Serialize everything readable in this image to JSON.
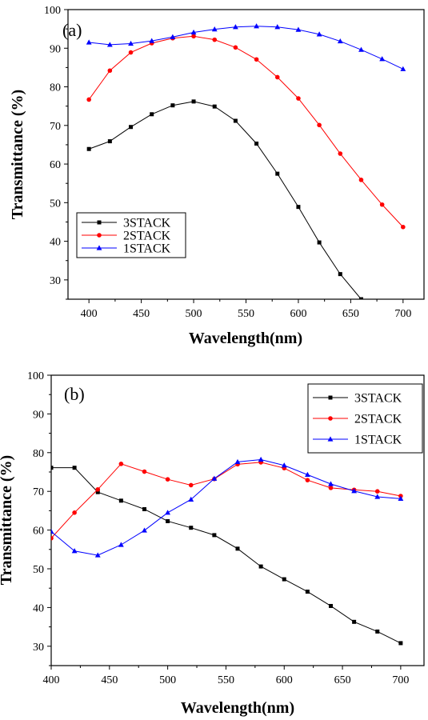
{
  "chart_data": [
    {
      "type": "line",
      "panel_label": "(a)",
      "xlabel": "Wavelength(nm)",
      "ylabel": "Transmittance (%)",
      "xlim": [
        380,
        720
      ],
      "ylim": [
        25,
        100
      ],
      "xticks": [
        400,
        450,
        500,
        550,
        600,
        650,
        700
      ],
      "xtick_labels": [
        "400",
        "450",
        "500",
        "550",
        "600",
        "650",
        "700"
      ],
      "yticks": [
        30,
        40,
        50,
        60,
        70,
        80,
        90,
        100
      ],
      "ytick_labels": [
        "30",
        "40",
        "50",
        "60",
        "70",
        "80",
        "90",
        "100"
      ],
      "grid": false,
      "legend_position": "bottom-left",
      "series": [
        {
          "name": "3STACK",
          "color": "#000000",
          "marker": "square",
          "x": [
            400,
            420,
            440,
            460,
            480,
            500,
            520,
            540,
            560,
            580,
            600,
            620,
            640,
            660
          ],
          "y": [
            63.9,
            65.9,
            69.6,
            72.9,
            75.2,
            76.2,
            74.9,
            71.2,
            65.3,
            57.5,
            48.9,
            39.7,
            31.5,
            25.0
          ]
        },
        {
          "name": "2STACK",
          "color": "#ff0000",
          "marker": "circle",
          "x": [
            400,
            420,
            440,
            460,
            480,
            500,
            520,
            540,
            560,
            580,
            600,
            620,
            640,
            660,
            680,
            700
          ],
          "y": [
            76.7,
            84.2,
            88.9,
            91.3,
            92.6,
            93.1,
            92.2,
            90.2,
            87.1,
            82.5,
            77.0,
            70.1,
            62.7,
            55.9,
            49.5,
            43.7
          ]
        },
        {
          "name": "1STACK",
          "color": "#0000ff",
          "marker": "triangle",
          "x": [
            400,
            420,
            440,
            460,
            480,
            500,
            520,
            540,
            560,
            580,
            600,
            620,
            640,
            660,
            680,
            700
          ],
          "y": [
            91.5,
            90.9,
            91.2,
            91.9,
            92.9,
            94.1,
            94.9,
            95.5,
            95.7,
            95.5,
            94.8,
            93.6,
            91.8,
            89.6,
            87.2,
            84.6
          ]
        }
      ]
    },
    {
      "type": "line",
      "panel_label": "(b)",
      "xlabel": "Wavelength(nm)",
      "ylabel": "Transmittance (%)",
      "xlim": [
        400,
        720
      ],
      "ylim": [
        25,
        100
      ],
      "xticks": [
        400,
        450,
        500,
        550,
        600,
        650,
        700
      ],
      "xtick_labels": [
        "400",
        "450",
        "500",
        "550",
        "600",
        "650",
        "700"
      ],
      "yticks": [
        30,
        40,
        50,
        60,
        70,
        80,
        90,
        100
      ],
      "ytick_labels": [
        "30",
        "40",
        "50",
        "60",
        "70",
        "80",
        "90",
        "100"
      ],
      "grid": false,
      "legend_position": "top-right",
      "series": [
        {
          "name": "3STACK",
          "color": "#000000",
          "marker": "square",
          "x": [
            400,
            420,
            440,
            460,
            480,
            500,
            520,
            540,
            560,
            580,
            600,
            620,
            640,
            660,
            680,
            700
          ],
          "y": [
            76.1,
            76.1,
            69.8,
            67.6,
            65.4,
            62.3,
            60.6,
            58.7,
            55.2,
            50.6,
            47.3,
            44.1,
            40.4,
            36.3,
            33.8,
            30.8
          ]
        },
        {
          "name": "2STACK",
          "color": "#ff0000",
          "marker": "circle",
          "x": [
            400,
            420,
            440,
            460,
            480,
            500,
            520,
            540,
            560,
            580,
            600,
            620,
            640,
            660,
            680,
            700
          ],
          "y": [
            57.9,
            64.5,
            70.5,
            77.1,
            75.1,
            73.1,
            71.6,
            73.2,
            77.0,
            77.5,
            76.0,
            72.9,
            70.9,
            70.4,
            70.0,
            68.8
          ]
        },
        {
          "name": "1STACK",
          "color": "#0000ff",
          "marker": "triangle",
          "x": [
            400,
            420,
            440,
            460,
            480,
            500,
            520,
            540,
            560,
            580,
            600,
            620,
            640,
            660,
            680,
            700
          ],
          "y": [
            59.6,
            54.6,
            53.5,
            56.2,
            59.9,
            64.5,
            67.9,
            73.3,
            77.6,
            78.2,
            76.7,
            74.3,
            71.9,
            70.1,
            68.6,
            68.1
          ]
        }
      ]
    }
  ]
}
